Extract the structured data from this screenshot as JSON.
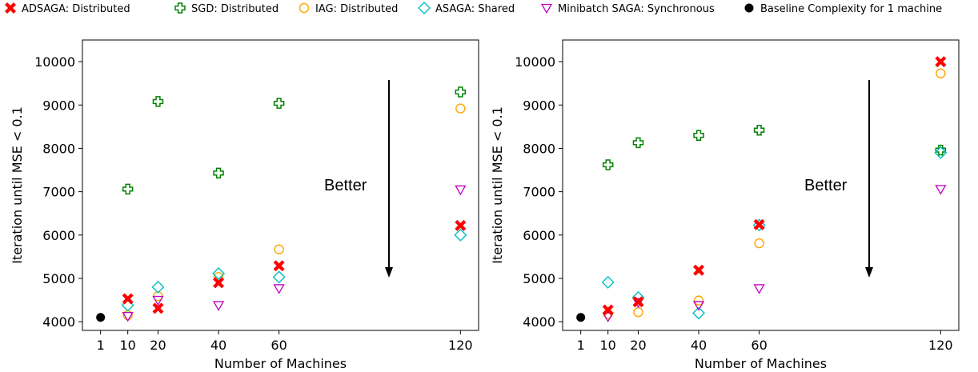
{
  "chart_data": [
    {
      "type": "scatter",
      "xlabel": "Number of Machines",
      "ylabel": "Iteration until MSE < 0.1",
      "xticks": [
        1,
        10,
        20,
        40,
        60,
        120
      ],
      "yticks": [
        4000,
        5000,
        6000,
        7000,
        8000,
        9000,
        10000
      ],
      "xlim": [
        -5,
        126
      ],
      "ylim": [
        3800,
        10500
      ],
      "annotation": "Better",
      "series": [
        {
          "name": "ADSAGA: Distributed",
          "points": [
            [
              10,
              4530
            ],
            [
              20,
              4310
            ],
            [
              40,
              4900
            ],
            [
              60,
              5290
            ],
            [
              120,
              6220
            ]
          ]
        },
        {
          "name": "SGD: Distributed",
          "points": [
            [
              10,
              7060
            ],
            [
              20,
              9080
            ],
            [
              40,
              7430
            ],
            [
              60,
              9040
            ],
            [
              120,
              9300
            ]
          ]
        },
        {
          "name": "IAG: Distributed",
          "points": [
            [
              10,
              4150
            ],
            [
              20,
              4590
            ],
            [
              40,
              5030
            ],
            [
              60,
              5670
            ],
            [
              120,
              8920
            ]
          ]
        },
        {
          "name": "ASAGA: Shared",
          "points": [
            [
              10,
              4380
            ],
            [
              20,
              4800
            ],
            [
              40,
              5110
            ],
            [
              60,
              5030
            ],
            [
              120,
              6000
            ]
          ]
        },
        {
          "name": "Minibatch SAGA: Synchronous",
          "points": [
            [
              10,
              4130
            ],
            [
              20,
              4500
            ],
            [
              40,
              4380
            ],
            [
              60,
              4770
            ],
            [
              120,
              7050
            ]
          ]
        },
        {
          "name": "Baseline Complexity for 1 machine",
          "points": [
            [
              1,
              4100
            ]
          ]
        }
      ]
    },
    {
      "type": "scatter",
      "xlabel": "Number of Machines",
      "ylabel": "Iteration until MSE < 0.1",
      "xticks": [
        1,
        10,
        20,
        40,
        60,
        120
      ],
      "yticks": [
        4000,
        5000,
        6000,
        7000,
        8000,
        9000,
        10000
      ],
      "xlim": [
        -5,
        126
      ],
      "ylim": [
        3800,
        10500
      ],
      "annotation": "Better",
      "series": [
        {
          "name": "ADSAGA: Distributed",
          "points": [
            [
              10,
              4270
            ],
            [
              20,
              4460
            ],
            [
              40,
              5190
            ],
            [
              60,
              6240
            ],
            [
              120,
              10000
            ]
          ]
        },
        {
          "name": "SGD: Distributed",
          "points": [
            [
              10,
              7620
            ],
            [
              20,
              8130
            ],
            [
              40,
              8300
            ],
            [
              60,
              8420
            ],
            [
              120,
              7960
            ]
          ]
        },
        {
          "name": "IAG: Distributed",
          "points": [
            [
              10,
              4180
            ],
            [
              20,
              4220
            ],
            [
              40,
              4490
            ],
            [
              60,
              5810
            ],
            [
              120,
              9730
            ]
          ]
        },
        {
          "name": "ASAGA: Shared",
          "points": [
            [
              10,
              4910
            ],
            [
              20,
              4560
            ],
            [
              40,
              4200
            ],
            [
              60,
              6230
            ],
            [
              120,
              7900
            ]
          ]
        },
        {
          "name": "Minibatch SAGA: Synchronous",
          "points": [
            [
              10,
              4120
            ],
            [
              20,
              4450
            ],
            [
              40,
              4380
            ],
            [
              60,
              4770
            ],
            [
              120,
              7060
            ]
          ]
        },
        {
          "name": "Baseline Complexity for 1 machine",
          "points": [
            [
              1,
              4100
            ]
          ]
        }
      ]
    }
  ],
  "legend": {
    "placement": "top",
    "items": [
      {
        "label": "ADSAGA: Distributed",
        "marker": "x-filled-icon",
        "color": "#ff0000"
      },
      {
        "label": "SGD: Distributed",
        "marker": "plus-hollow-icon",
        "color": "#008000"
      },
      {
        "label": "IAG: Distributed",
        "marker": "circle-hollow-icon",
        "color": "#ffa500"
      },
      {
        "label": "ASAGA: Shared",
        "marker": "diamond-hollow-icon",
        "color": "#00bfbf"
      },
      {
        "label": "Minibatch SAGA: Synchronous",
        "marker": "triangle-down-hollow-icon",
        "color": "#bf00bf"
      },
      {
        "label": "Baseline Complexity for 1 machine",
        "marker": "circle-filled-icon",
        "color": "#000000"
      }
    ]
  }
}
